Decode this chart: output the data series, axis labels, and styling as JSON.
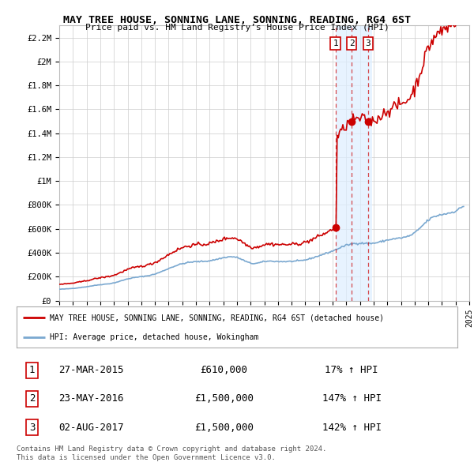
{
  "title": "MAY TREE HOUSE, SONNING LANE, SONNING, READING, RG4 6ST",
  "subtitle": "Price paid vs. HM Land Registry’s House Price Index (HPI)",
  "ylim": [
    0,
    2300000
  ],
  "yticks": [
    0,
    200000,
    400000,
    600000,
    800000,
    1000000,
    1200000,
    1400000,
    1600000,
    1800000,
    2000000,
    2200000
  ],
  "ytick_labels": [
    "£0",
    "£200K",
    "£400K",
    "£600K",
    "£800K",
    "£1M",
    "£1.2M",
    "£1.4M",
    "£1.6M",
    "£1.8M",
    "£2M",
    "£2.2M"
  ],
  "transactions": [
    {
      "year": 2015.21,
      "price": 610000,
      "label": "1",
      "date": "27-MAR-2015",
      "pct": "17%"
    },
    {
      "year": 2016.39,
      "price": 1500000,
      "label": "2",
      "date": "23-MAY-2016",
      "pct": "147%"
    },
    {
      "year": 2017.59,
      "price": 1500000,
      "label": "3",
      "date": "02-AUG-2017",
      "pct": "142%"
    }
  ],
  "red_color": "#cc0000",
  "blue_color": "#7aa8d0",
  "shade_color": "#ddeeff",
  "background_color": "#ffffff",
  "grid_color": "#cccccc",
  "legend1": "MAY TREE HOUSE, SONNING LANE, SONNING, READING, RG4 6ST (detached house)",
  "legend2": "HPI: Average price, detached house, Wokingham",
  "footnote1": "Contains HM Land Registry data © Crown copyright and database right 2024.",
  "footnote2": "This data is licensed under the Open Government Licence v3.0.",
  "xmin": 1995,
  "xmax": 2025
}
